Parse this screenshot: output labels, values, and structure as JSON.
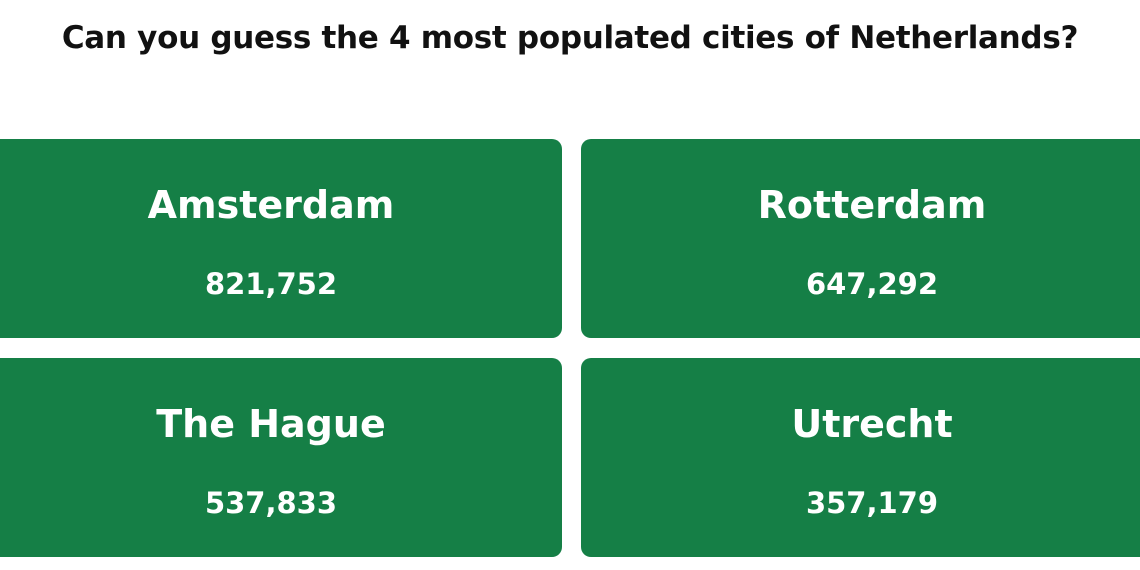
{
  "title": "Can you guess the 4 most populated cities of Netherlands?",
  "cards": [
    {
      "city": "Amsterdam",
      "population": "821,752"
    },
    {
      "city": "Rotterdam",
      "population": "647,292"
    },
    {
      "city": "The Hague",
      "population": "537,833"
    },
    {
      "city": "Utrecht",
      "population": "357,179"
    }
  ]
}
